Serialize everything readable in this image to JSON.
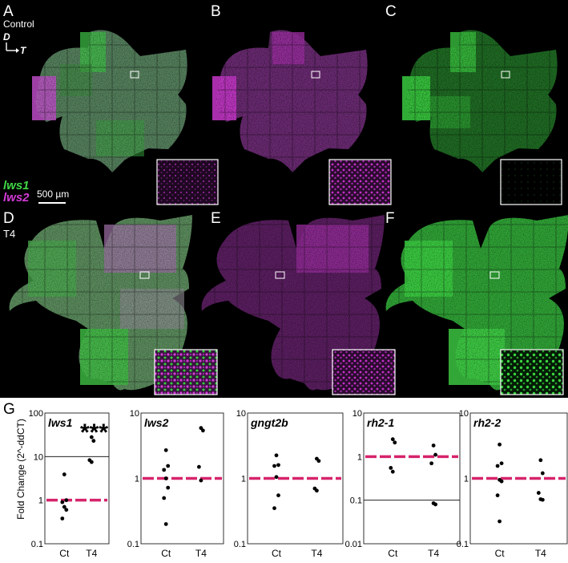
{
  "panel_letters": [
    "A",
    "B",
    "C",
    "D",
    "E",
    "F",
    "G"
  ],
  "labels": {
    "control": "Control",
    "d": "D",
    "t": "T",
    "lws1": "lws1",
    "lws2": "lws2",
    "scale": "500 µm",
    "t4": "T4"
  },
  "colors": {
    "green": "#34d13a",
    "magenta": "#d33ad6",
    "dash": "#d6246c",
    "background": "#000000"
  },
  "chart_data": [
    {
      "type": "scatter",
      "title": "lws1",
      "ylabel": "Fold Change (2^-ddCT)",
      "yscale": "log",
      "ylim": [
        0.1,
        100
      ],
      "yticks": [
        "0.1",
        "1",
        "10",
        "100"
      ],
      "categories": [
        "Ct",
        "T4"
      ],
      "reference_line": 1,
      "hline": 10,
      "annotation": "***",
      "points": [
        {
          "x": "Ct",
          "y": 3.9
        },
        {
          "x": "Ct",
          "y": 1.0
        },
        {
          "x": "Ct",
          "y": 0.9
        },
        {
          "x": "Ct",
          "y": 0.7
        },
        {
          "x": "Ct",
          "y": 0.6
        },
        {
          "x": "Ct",
          "y": 0.38
        },
        {
          "x": "T4",
          "y": 28
        },
        {
          "x": "T4",
          "y": 23
        },
        {
          "x": "T4",
          "y": 8.3
        },
        {
          "x": "T4",
          "y": 7.5
        }
      ]
    },
    {
      "type": "scatter",
      "title": "lws2",
      "yscale": "log",
      "ylim": [
        0.1,
        10
      ],
      "yticks": [
        "0.1",
        "1",
        "10"
      ],
      "categories": [
        "Ct",
        "T4"
      ],
      "reference_line": 1,
      "points": [
        {
          "x": "Ct",
          "y": 2.7
        },
        {
          "x": "Ct",
          "y": 1.55
        },
        {
          "x": "Ct",
          "y": 1.35
        },
        {
          "x": "Ct",
          "y": 1.0
        },
        {
          "x": "Ct",
          "y": 0.72
        },
        {
          "x": "Ct",
          "y": 0.5
        },
        {
          "x": "Ct",
          "y": 0.2
        },
        {
          "x": "T4",
          "y": 5.9
        },
        {
          "x": "T4",
          "y": 5.4
        },
        {
          "x": "T4",
          "y": 1.5
        },
        {
          "x": "T4",
          "y": 0.93
        }
      ]
    },
    {
      "type": "scatter",
      "title": "gngt2b",
      "yscale": "log",
      "ylim": [
        0.1,
        10
      ],
      "yticks": [
        "0.1",
        "1",
        "10"
      ],
      "categories": [
        "Ct",
        "T4"
      ],
      "reference_line": 1,
      "points": [
        {
          "x": "Ct",
          "y": 2.25
        },
        {
          "x": "Ct",
          "y": 1.6
        },
        {
          "x": "Ct",
          "y": 1.55
        },
        {
          "x": "Ct",
          "y": 1.05
        },
        {
          "x": "Ct",
          "y": 0.55
        },
        {
          "x": "Ct",
          "y": 0.35
        },
        {
          "x": "T4",
          "y": 2.0
        },
        {
          "x": "T4",
          "y": 1.85
        },
        {
          "x": "T4",
          "y": 0.7
        },
        {
          "x": "T4",
          "y": 0.65
        }
      ]
    },
    {
      "type": "scatter",
      "title": "rh2-1",
      "yscale": "log",
      "ylim": [
        0.01,
        10
      ],
      "yticks": [
        "0.01",
        "0.1",
        "1",
        "10"
      ],
      "categories": [
        "Ct",
        "T4"
      ],
      "reference_line": 1,
      "hline": 0.1,
      "points": [
        {
          "x": "Ct",
          "y": 2.5
        },
        {
          "x": "Ct",
          "y": 2.1
        },
        {
          "x": "Ct",
          "y": 0.55
        },
        {
          "x": "Ct",
          "y": 0.45
        },
        {
          "x": "T4",
          "y": 1.8
        },
        {
          "x": "T4",
          "y": 1.1
        },
        {
          "x": "T4",
          "y": 0.7
        },
        {
          "x": "T4",
          "y": 0.085
        },
        {
          "x": "T4",
          "y": 0.08
        }
      ]
    },
    {
      "type": "scatter",
      "title": "rh2-2",
      "yscale": "log",
      "ylim": [
        0.1,
        10
      ],
      "yticks": [
        "0.1",
        "1",
        "10"
      ],
      "categories": [
        "Ct",
        "T4"
      ],
      "reference_line": 1,
      "points": [
        {
          "x": "Ct",
          "y": 3.3
        },
        {
          "x": "Ct",
          "y": 1.7
        },
        {
          "x": "Ct",
          "y": 1.55
        },
        {
          "x": "Ct",
          "y": 0.95
        },
        {
          "x": "Ct",
          "y": 0.9
        },
        {
          "x": "Ct",
          "y": 0.55
        },
        {
          "x": "Ct",
          "y": 0.22
        },
        {
          "x": "T4",
          "y": 1.9
        },
        {
          "x": "T4",
          "y": 1.2
        },
        {
          "x": "T4",
          "y": 0.6
        },
        {
          "x": "T4",
          "y": 0.48
        },
        {
          "x": "T4",
          "y": 0.47
        }
      ]
    }
  ]
}
